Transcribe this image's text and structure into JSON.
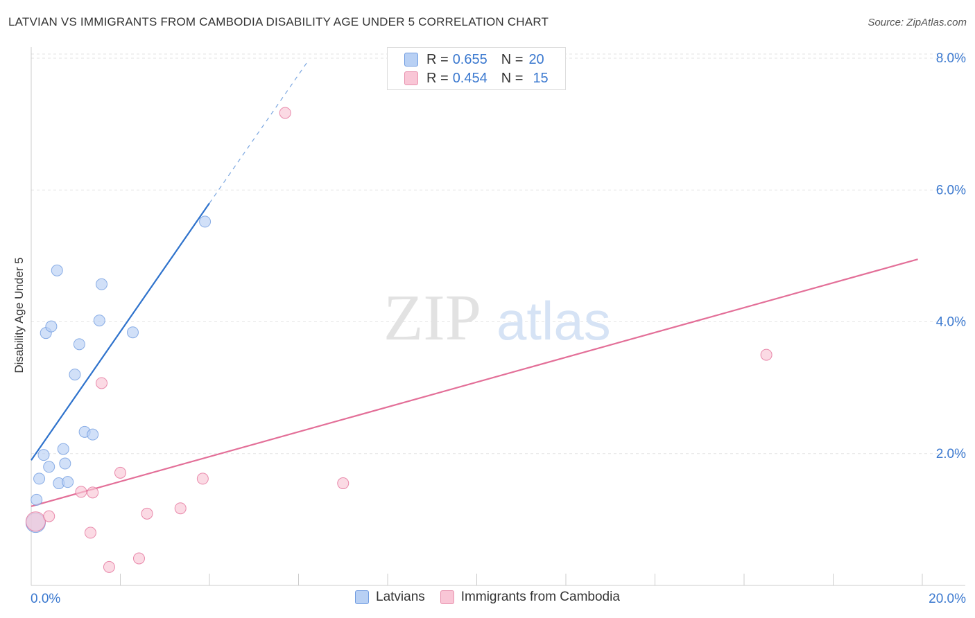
{
  "title": "LATVIAN VS IMMIGRANTS FROM CAMBODIA DISABILITY AGE UNDER 5 CORRELATION CHART",
  "source": "Source: ZipAtlas.com",
  "watermark": {
    "zip": "ZIP",
    "atlas": "atlas"
  },
  "legend": {
    "rows": [
      {
        "r_label": "R =",
        "r_value": "0.655",
        "n_label": "N =",
        "n_value": "20",
        "color": "#b8d0f4"
      },
      {
        "r_label": "R =",
        "r_value": "0.454",
        "n_label": "N =",
        "n_value": "15",
        "color": "#f9c6d6"
      }
    ]
  },
  "bottom_legend": {
    "latvians": "Latvians",
    "cambodia": "Immigrants from Cambodia"
  },
  "chart_data": {
    "type": "scatter",
    "title": "LATVIAN VS IMMIGRANTS FROM CAMBODIA DISABILITY AGE UNDER 5 CORRELATION CHART",
    "xlabel": "",
    "ylabel": "Disability Age Under 5",
    "xlim": [
      0,
      20
    ],
    "ylim": [
      0,
      8.2
    ],
    "x_tick_labels": [
      "0.0%",
      "20.0%"
    ],
    "y_ticks": [
      2,
      4,
      6,
      8
    ],
    "y_tick_labels": [
      "2.0%",
      "4.0%",
      "6.0%",
      "8.0%"
    ],
    "grid": true,
    "legend_position": "top-center",
    "series": [
      {
        "name": "Latvians",
        "color": "#6f9be0",
        "fill": "#b8d0f4",
        "points": [
          {
            "x": 0.1,
            "y": 0.95,
            "big": true
          },
          {
            "x": 0.12,
            "y": 1.3
          },
          {
            "x": 0.18,
            "y": 1.62
          },
          {
            "x": 0.28,
            "y": 1.98
          },
          {
            "x": 0.33,
            "y": 3.83
          },
          {
            "x": 0.4,
            "y": 1.8
          },
          {
            "x": 0.45,
            "y": 3.93
          },
          {
            "x": 0.58,
            "y": 4.78
          },
          {
            "x": 0.62,
            "y": 1.55
          },
          {
            "x": 0.72,
            "y": 2.07
          },
          {
            "x": 0.76,
            "y": 1.85
          },
          {
            "x": 0.82,
            "y": 1.57
          },
          {
            "x": 0.98,
            "y": 3.2
          },
          {
            "x": 1.08,
            "y": 3.66
          },
          {
            "x": 1.2,
            "y": 2.33
          },
          {
            "x": 1.38,
            "y": 2.29
          },
          {
            "x": 1.53,
            "y": 4.02
          },
          {
            "x": 1.58,
            "y": 4.57
          },
          {
            "x": 2.28,
            "y": 3.84
          },
          {
            "x": 3.9,
            "y": 5.52
          }
        ],
        "trend": {
          "x0": 0,
          "y0": 1.9,
          "x1": 4.0,
          "y1": 5.8,
          "dash_to_x": 6.2
        }
      },
      {
        "name": "Immigrants from Cambodia",
        "color": "#e36f98",
        "fill": "#f9c6d6",
        "points": [
          {
            "x": 0.1,
            "y": 0.97,
            "big": true
          },
          {
            "x": 0.4,
            "y": 1.05
          },
          {
            "x": 1.12,
            "y": 1.42
          },
          {
            "x": 1.38,
            "y": 1.41
          },
          {
            "x": 1.33,
            "y": 0.8
          },
          {
            "x": 1.58,
            "y": 3.07
          },
          {
            "x": 1.75,
            "y": 0.28
          },
          {
            "x": 2.0,
            "y": 1.71
          },
          {
            "x": 2.42,
            "y": 0.41
          },
          {
            "x": 2.6,
            "y": 1.09
          },
          {
            "x": 3.35,
            "y": 1.17
          },
          {
            "x": 3.85,
            "y": 1.62
          },
          {
            "x": 5.7,
            "y": 7.17
          },
          {
            "x": 7.0,
            "y": 1.55
          },
          {
            "x": 16.5,
            "y": 3.5
          }
        ],
        "trend": {
          "x0": 0,
          "y0": 1.2,
          "x1": 19.9,
          "y1": 4.95
        }
      }
    ]
  }
}
